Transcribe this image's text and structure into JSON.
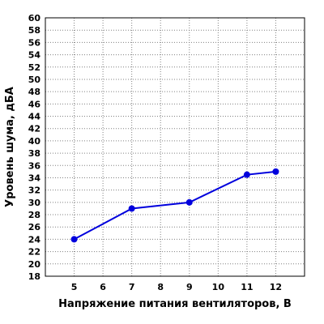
{
  "chart_data": {
    "type": "line",
    "xlabel": "Напряжение питания вентиляторов, В",
    "ylabel": "Уровень шума, дБА",
    "xlim": [
      4,
      13
    ],
    "ylim": [
      18,
      60
    ],
    "x_ticks": [
      5,
      6,
      7,
      8,
      9,
      10,
      11,
      12
    ],
    "y_ticks": [
      18,
      20,
      22,
      24,
      26,
      28,
      30,
      32,
      34,
      36,
      38,
      40,
      42,
      44,
      46,
      48,
      50,
      52,
      54,
      56,
      58,
      60
    ],
    "grid": true,
    "series": [
      {
        "color": "#0000dd",
        "x": [
          5,
          7,
          9,
          11,
          12
        ],
        "y": [
          24,
          29,
          30,
          34.5,
          35
        ]
      }
    ]
  }
}
